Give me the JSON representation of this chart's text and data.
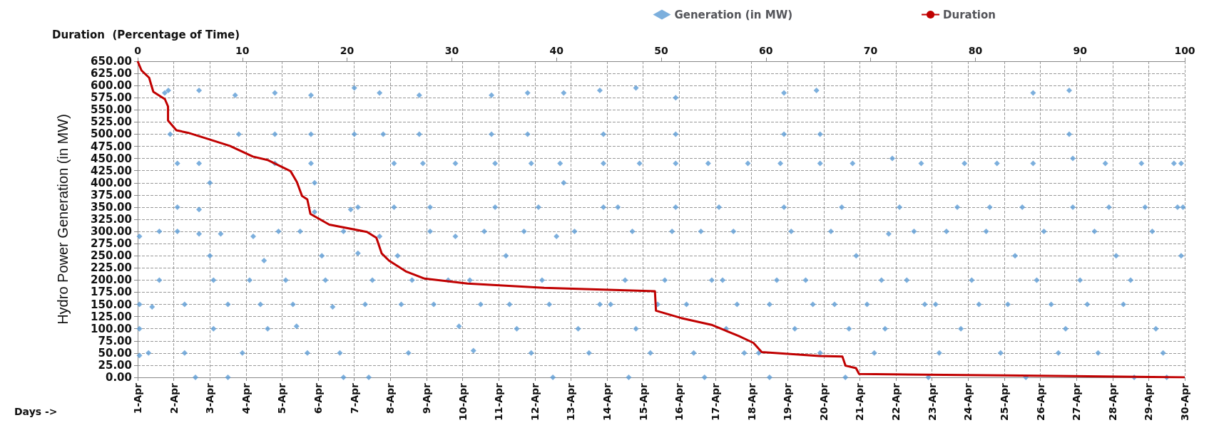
{
  "chart_data": {
    "type": "scatter",
    "x2label": "Duration  (Percentage of Time)",
    "ylabel": "Hydro Power Generation (in MW)",
    "xlabel": "Days ->",
    "xlim": [
      "--04-01",
      "--04-30"
    ],
    "xticks": [
      {
        "value": "--04-01",
        "label": "1-Apr"
      },
      {
        "value": "--04-02",
        "label": "2-Apr"
      },
      {
        "value": "--04-03",
        "label": "3-Apr"
      },
      {
        "value": "--04-04",
        "label": "4-Apr"
      },
      {
        "value": "--04-05",
        "label": "5-Apr"
      },
      {
        "value": "--04-06",
        "label": "6-Apr"
      },
      {
        "value": "--04-07",
        "label": "7-Apr"
      },
      {
        "value": "--04-08",
        "label": "8-Apr"
      },
      {
        "value": "--04-09",
        "label": "9-Apr"
      },
      {
        "value": "--04-10",
        "label": "10-Apr"
      },
      {
        "value": "--04-11",
        "label": "11-Apr"
      },
      {
        "value": "--04-12",
        "label": "12-Apr"
      },
      {
        "value": "--04-13",
        "label": "13-Apr"
      },
      {
        "value": "--04-14",
        "label": "14-Apr"
      },
      {
        "value": "--04-15",
        "label": "15-Apr"
      },
      {
        "value": "--04-16",
        "label": "16-Apr"
      },
      {
        "value": "--04-17",
        "label": "17-Apr"
      },
      {
        "value": "--04-18",
        "label": "18-Apr"
      },
      {
        "value": "--04-19",
        "label": "19-Apr"
      },
      {
        "value": "--04-20",
        "label": "20-Apr"
      },
      {
        "value": "--04-21",
        "label": "21-Apr"
      },
      {
        "value": "--04-22",
        "label": "22-Apr"
      },
      {
        "value": "--04-23",
        "label": "23-Apr"
      },
      {
        "value": "--04-24",
        "label": "24-Apr"
      },
      {
        "value": "--04-25",
        "label": "25-Apr"
      },
      {
        "value": "--04-26",
        "label": "26-Apr"
      },
      {
        "value": "--04-27",
        "label": "27-Apr"
      },
      {
        "value": "--04-28",
        "label": "28-Apr"
      },
      {
        "value": "--04-29",
        "label": "29-Apr"
      },
      {
        "value": "--04-30",
        "label": "30-Apr"
      }
    ],
    "x2lim": [
      0,
      100
    ],
    "x2ticks": [
      0,
      10,
      20,
      30,
      40,
      50,
      60,
      70,
      80,
      90,
      100
    ],
    "ylim": [
      0,
      650
    ],
    "yticks": [
      {
        "value": 0,
        "label": "0.00"
      },
      {
        "value": 25,
        "label": "25.00"
      },
      {
        "value": 50,
        "label": "50.00"
      },
      {
        "value": 75,
        "label": "75.00"
      },
      {
        "value": 100,
        "label": "100.00"
      },
      {
        "value": 125,
        "label": "125.00"
      },
      {
        "value": 150,
        "label": "150.00"
      },
      {
        "value": 175,
        "label": "175.00"
      },
      {
        "value": 200,
        "label": "200.00"
      },
      {
        "value": 225,
        "label": "225.00"
      },
      {
        "value": 250,
        "label": "250.00"
      },
      {
        "value": 275,
        "label": "275.00"
      },
      {
        "value": 300,
        "label": "300.00"
      },
      {
        "value": 325,
        "label": "325.00"
      },
      {
        "value": 350,
        "label": "350.00"
      },
      {
        "value": 375,
        "label": "375.00"
      },
      {
        "value": 400,
        "label": "400.00"
      },
      {
        "value": 425,
        "label": "425.00"
      },
      {
        "value": 450,
        "label": "450.00"
      },
      {
        "value": 475,
        "label": "475.00"
      },
      {
        "value": 500,
        "label": "500.00"
      },
      {
        "value": 525,
        "label": "525.00"
      },
      {
        "value": 550,
        "label": "550.00"
      },
      {
        "value": 575,
        "label": "575.00"
      },
      {
        "value": 600,
        "label": "600.00"
      },
      {
        "value": 625,
        "label": "625.00"
      },
      {
        "value": 650,
        "label": "650.00"
      }
    ],
    "grid": true,
    "legend": "top right",
    "series": [
      {
        "name": "Generation (in MW)",
        "color": "#5b9bd5",
        "marker": "diamond",
        "x": [
          "--04-01T01:12",
          "--04-01T01:12",
          "--04-01T01:12",
          "--04-01T01:12",
          "--04-01T07:12",
          "--04-01T09:36",
          "--04-01T14:24",
          "--04-01T18:00",
          "--04-01T20:24",
          "--04-01T21:36",
          "--04-01T14:24",
          "--04-02T02:24",
          "--04-02T02:24",
          "--04-02T02:24",
          "--04-02T07:12",
          "--04-02T07:12",
          "--04-02T16:48",
          "--04-02T16:48",
          "--04-02T16:48",
          "--04-02T16:48",
          "--04-02T14:24",
          "--04-03T00:00",
          "--04-03T00:00",
          "--04-03T02:24",
          "--04-03T02:24",
          "--04-03T07:12",
          "--04-03T12:00",
          "--04-03T16:48",
          "--04-03T19:12",
          "--04-03T21:36",
          "--04-03T12:00",
          "--04-04T02:24",
          "--04-04T04:48",
          "--04-04T09:36",
          "--04-04T12:00",
          "--04-04T19:12",
          "--04-04T19:12",
          "--04-04T19:12",
          "--04-04T21:36",
          "--04-04T14:24",
          "--04-05T02:24",
          "--04-05T07:12",
          "--04-05T09:36",
          "--04-05T12:00",
          "--04-05T19:12",
          "--04-05T19:12",
          "--04-05T19:12",
          "--04-05T21:36",
          "--04-05T21:36",
          "--04-05T16:48",
          "--04-06T02:24",
          "--04-06T04:48",
          "--04-06T09:36",
          "--04-06T14:24",
          "--04-06T16:48",
          "--04-06T21:36",
          "--04-07T00:00",
          "--04-07T00:00",
          "--04-06T16:48",
          "--04-07T02:24",
          "--04-07T02:24",
          "--04-07T07:12",
          "--04-07T12:00",
          "--04-07T16:48",
          "--04-07T19:12",
          "--04-07T16:48",
          "--04-07T09:36",
          "--04-08T02:24",
          "--04-08T02:24",
          "--04-08T04:48",
          "--04-08T07:12",
          "--04-08T12:00",
          "--04-08T19:12",
          "--04-08T19:12",
          "--04-08T21:36",
          "--04-08T14:24",
          "--04-09T02:24",
          "--04-09T02:24",
          "--04-09T04:48",
          "--04-09T14:24",
          "--04-09T19:12",
          "--04-09T21:36",
          "--04-09T19:12",
          "--04-10T04:48",
          "--04-10T07:12",
          "--04-10T12:00",
          "--04-10T19:12",
          "--04-10T19:12",
          "--04-10T21:36",
          "--04-10T21:36",
          "--04-10T14:24",
          "--04-11T04:48",
          "--04-11T07:12",
          "--04-11T12:00",
          "--04-11T19:12",
          "--04-11T19:12",
          "--04-11T21:36",
          "--04-11T16:48",
          "--04-11T21:36",
          "--04-12T02:24",
          "--04-12T04:48",
          "--04-12T09:36",
          "--04-12T14:24",
          "--04-12T19:12",
          "--04-12T19:12",
          "--04-12T16:48",
          "--04-12T12:00",
          "--04-13T02:24",
          "--04-13T04:48",
          "--04-13T12:00",
          "--04-13T19:12",
          "--04-13T21:36",
          "--04-13T21:36",
          "--04-13T19:12",
          "--04-13T21:36",
          "--04-14T02:24",
          "--04-14T07:12",
          "--04-14T12:00",
          "--04-14T19:12",
          "--04-14T21:36",
          "--04-14T19:12",
          "--04-14T14:24",
          "--04-14T16:48",
          "--04-15T04:48",
          "--04-15T09:36",
          "--04-15T14:24",
          "--04-15T21:36",
          "--04-15T21:36",
          "--04-15T21:36",
          "--04-15T21:36",
          "--04-15T19:12",
          "--04-16T04:48",
          "--04-16T09:36",
          "--04-16T14:24",
          "--04-16T19:12",
          "--04-16T16:48",
          "--04-16T21:36",
          "--04-17T02:24",
          "--04-17T04:48",
          "--04-17T07:12",
          "--04-17T12:00",
          "--04-17T14:24",
          "--04-17T21:36",
          "--04-17T19:12",
          "--04-18T04:48",
          "--04-18T12:00",
          "--04-18T16:48",
          "--04-18T21:36",
          "--04-18T21:36",
          "--04-18T19:12",
          "--04-18T21:36",
          "--04-18T12:00",
          "--04-19T02:24",
          "--04-19T04:48",
          "--04-19T12:00",
          "--04-19T19:12",
          "--04-19T21:36",
          "--04-19T21:36",
          "--04-19T16:48",
          "--04-19T21:36",
          "--04-20T04:48",
          "--04-20T07:12",
          "--04-20T12:00",
          "--04-20T19:12",
          "--04-20T16:48",
          "--04-20T21:36",
          "--04-20T14:24",
          "--04-21T04:48",
          "--04-21T09:36",
          "--04-21T14:24",
          "--04-21T21:36",
          "--04-21T19:12",
          "--04-21T16:48",
          "--04-22T02:24",
          "--04-22T07:12",
          "--04-22T12:00",
          "--04-22T16:48",
          "--04-22T19:12",
          "--04-22T21:36",
          "--04-23T02:24",
          "--04-23T04:48",
          "--04-23T09:36",
          "--04-23T16:48",
          "--04-23T21:36",
          "--04-23T19:12",
          "--04-24T02:24",
          "--04-24T07:12",
          "--04-24T12:00",
          "--04-24T19:12",
          "--04-24T21:36",
          "--04-24T14:24",
          "--04-25T02:24",
          "--04-25T07:12",
          "--04-25T12:00",
          "--04-25T19:12",
          "--04-25T19:12",
          "--04-25T21:36",
          "--04-25T14:24",
          "--04-26T02:24",
          "--04-26T07:12",
          "--04-26T12:00",
          "--04-26T19:12",
          "--04-26T19:12",
          "--04-26T21:36",
          "--04-26T21:36",
          "--04-26T16:48",
          "--04-27T02:24",
          "--04-27T07:12",
          "--04-27T12:00",
          "--04-27T19:12",
          "--04-27T21:36",
          "--04-27T14:24",
          "--04-28T02:24",
          "--04-28T07:12",
          "--04-28T12:00",
          "--04-28T19:12",
          "--04-28T21:36",
          "--04-28T14:24",
          "--04-29T02:24",
          "--04-29T04:48",
          "--04-29T09:36",
          "--04-29T16:48",
          "--04-29T19:12",
          "--04-29T12:00",
          "--04-29T21:36",
          "--04-29T21:36",
          "--04-29T22:48"
        ],
        "values": [
          290,
          150,
          100,
          45,
          50,
          145,
          200,
          585,
          590,
          500,
          300,
          440,
          350,
          300,
          150,
          50,
          590,
          440,
          345,
          295,
          0,
          400,
          250,
          200,
          100,
          295,
          150,
          580,
          500,
          50,
          0,
          200,
          290,
          150,
          240,
          585,
          500,
          440,
          300,
          100,
          200,
          150,
          105,
          300,
          580,
          500,
          440,
          400,
          340,
          50,
          250,
          200,
          145,
          50,
          300,
          345,
          500,
          595,
          0,
          350,
          255,
          150,
          200,
          585,
          500,
          290,
          0,
          440,
          350,
          250,
          150,
          50,
          580,
          500,
          440,
          200,
          350,
          300,
          150,
          200,
          440,
          105,
          290,
          200,
          55,
          150,
          580,
          500,
          440,
          350,
          300,
          250,
          150,
          100,
          585,
          500,
          440,
          300,
          50,
          350,
          200,
          150,
          290,
          585,
          400,
          440,
          0,
          300,
          100,
          50,
          590,
          500,
          440,
          150,
          350,
          150,
          350,
          200,
          595,
          440,
          100,
          0,
          300,
          50,
          150,
          200,
          575,
          500,
          440,
          350,
          300,
          150,
          50,
          300,
          440,
          0,
          200,
          350,
          200,
          100,
          300,
          150,
          440,
          50,
          50,
          150,
          200,
          585,
          500,
          440,
          350,
          0,
          300,
          100,
          200,
          590,
          500,
          440,
          150,
          50,
          300,
          150,
          350,
          440,
          100,
          250,
          0,
          150,
          50,
          200,
          450,
          295,
          100,
          350,
          200,
          300,
          440,
          150,
          0,
          150,
          50,
          300,
          350,
          440,
          100,
          200,
          150,
          300,
          440,
          50,
          350,
          150,
          250,
          350,
          585,
          440,
          200,
          0,
          300,
          150,
          50,
          590,
          500,
          450,
          350,
          100,
          200,
          150,
          300,
          440,
          350,
          50,
          250,
          150,
          200,
          440,
          350,
          0,
          300,
          100,
          50,
          440,
          350,
          0,
          440,
          250,
          350
        ]
      },
      {
        "name": "Duration",
        "type": "line",
        "axis": "x2",
        "color": "#c00000",
        "marker": "none",
        "line_style": "solid",
        "x": [
          0,
          0.37,
          1.1,
          1.3,
          1.5,
          2.6,
          2.9,
          2.9,
          3.7,
          4.8,
          6.6,
          8.8,
          11,
          12.4,
          14.6,
          15.2,
          15.7,
          16.2,
          16.5,
          18.3,
          21.9,
          22.8,
          23.3,
          24,
          25.6,
          27.4,
          31.5,
          38.8,
          49.4,
          49.5,
          51.9,
          54.8,
          57.4,
          58.8,
          59.6,
          65.1,
          67.3,
          67.6,
          68.6,
          68.9,
          82.7,
          100
        ],
        "values": [
          650,
          631,
          616,
          601,
          587,
          572,
          557,
          528,
          508,
          503,
          491,
          476,
          454,
          447,
          424,
          402,
          373,
          366,
          336,
          314,
          299,
          287,
          255,
          240,
          218,
          203,
          193,
          184,
          177,
          137,
          122,
          108,
          85,
          71,
          52,
          44,
          43,
          24,
          19,
          7,
          4,
          0
        ]
      }
    ]
  }
}
